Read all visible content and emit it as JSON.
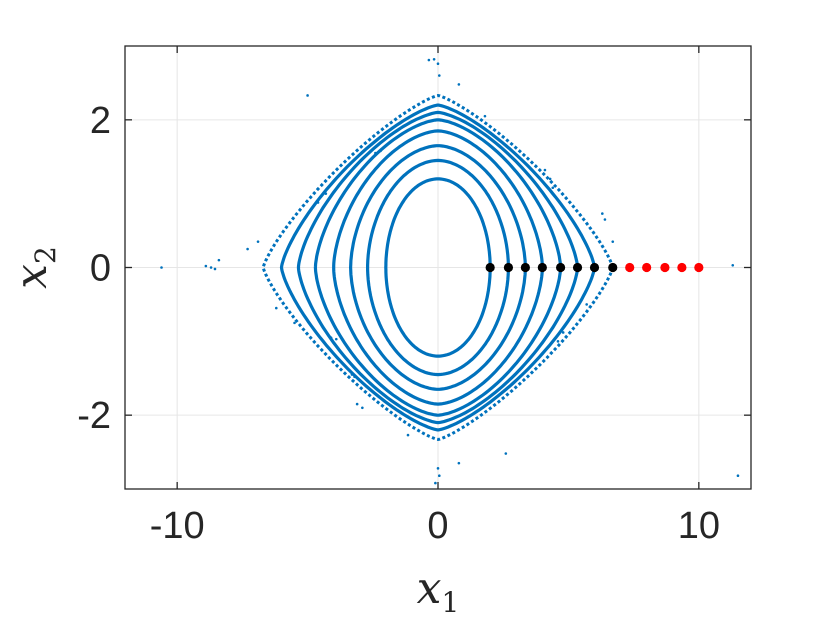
{
  "chart_data": {
    "type": "scatter",
    "xlabel": {
      "base": "x",
      "sub": "1"
    },
    "ylabel": {
      "base": "x",
      "sub": "2"
    },
    "xlim": [
      -12,
      12
    ],
    "ylim": [
      -3,
      3
    ],
    "x_ticks": [
      -10,
      0,
      10
    ],
    "y_ticks": [
      -2,
      0,
      2
    ],
    "x_tick_labels": [
      "-10",
      "0",
      "10"
    ],
    "y_tick_labels": [
      "-2",
      "0",
      "2"
    ],
    "grid": true,
    "colors": {
      "orbit": "#0072BD",
      "bounded_ic": "#000000",
      "unbounded_ic": "#FF0000",
      "grid": "#e6e6e6",
      "axis": "#262626"
    },
    "orbits": {
      "x_intercepts": [
        2.0,
        2.7,
        3.35,
        4.0,
        4.7,
        5.35,
        6.0,
        6.7
      ],
      "y_intercepts": [
        1.2,
        1.45,
        1.65,
        1.85,
        2.0,
        2.1,
        2.2,
        2.33
      ]
    },
    "initial_conditions_bounded": [
      [
        2.0,
        0
      ],
      [
        2.7,
        0
      ],
      [
        3.35,
        0
      ],
      [
        4.0,
        0
      ],
      [
        4.7,
        0
      ],
      [
        5.35,
        0
      ],
      [
        6.0,
        0
      ],
      [
        6.7,
        0
      ]
    ],
    "initial_conditions_unbounded": [
      [
        7.35,
        0
      ],
      [
        8.0,
        0
      ],
      [
        8.7,
        0
      ],
      [
        9.35,
        0
      ],
      [
        10.0,
        0
      ]
    ],
    "stray_points": [
      [
        -10.6,
        0.0
      ],
      [
        -8.9,
        0.02
      ],
      [
        -8.7,
        0.0
      ],
      [
        -8.55,
        -0.02
      ],
      [
        -8.4,
        0.1
      ],
      [
        -7.3,
        0.25
      ],
      [
        -6.9,
        0.35
      ],
      [
        -6.2,
        -0.55
      ],
      [
        -5.5,
        -0.75
      ],
      [
        -5.0,
        2.33
      ],
      [
        -4.6,
        0.88
      ],
      [
        -4.3,
        1.0
      ],
      [
        -4.1,
        -0.95
      ],
      [
        -3.9,
        -0.97
      ],
      [
        -3.3,
        -1.45
      ],
      [
        -3.2,
        -1.48
      ],
      [
        -3.1,
        -1.85
      ],
      [
        -2.9,
        -1.9
      ],
      [
        -2.4,
        1.55
      ],
      [
        -2.2,
        1.58
      ],
      [
        -1.15,
        -2.27
      ],
      [
        -0.35,
        2.81
      ],
      [
        -0.15,
        2.82
      ],
      [
        0.0,
        2.76
      ],
      [
        0.05,
        2.6
      ],
      [
        0.8,
        2.48
      ],
      [
        1.8,
        2.05
      ],
      [
        0.0,
        -2.72
      ],
      [
        0.05,
        -2.82
      ],
      [
        -0.1,
        -2.92
      ],
      [
        0.8,
        -2.65
      ],
      [
        2.6,
        -2.52
      ],
      [
        4.1,
        1.32
      ],
      [
        4.3,
        1.2
      ],
      [
        4.4,
        1.08
      ],
      [
        4.6,
        -1.0
      ],
      [
        4.8,
        -0.88
      ],
      [
        5.7,
        -0.5
      ],
      [
        6.3,
        0.73
      ],
      [
        6.4,
        0.65
      ],
      [
        6.7,
        0.35
      ],
      [
        11.3,
        0.03
      ],
      [
        11.5,
        -2.82
      ]
    ]
  }
}
